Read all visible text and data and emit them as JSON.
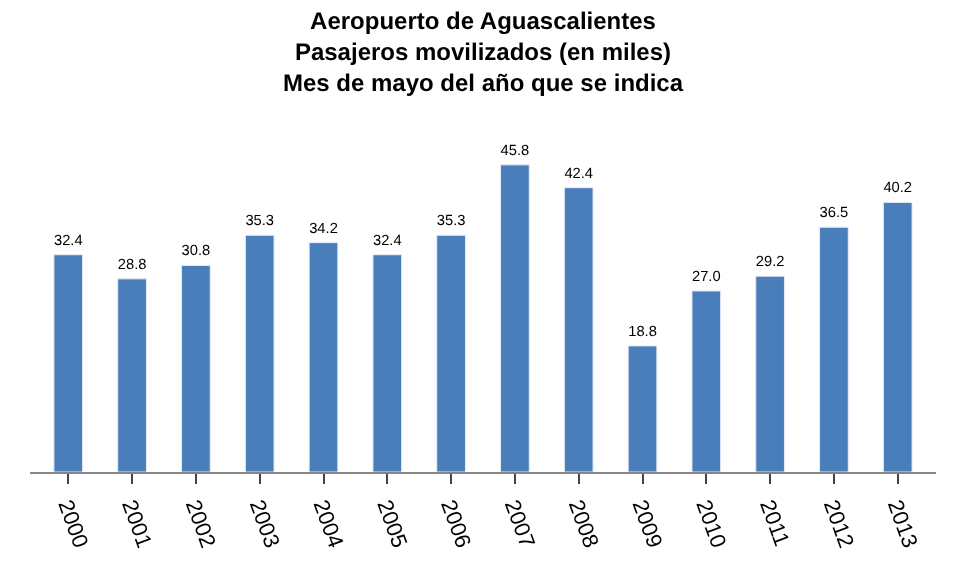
{
  "chart_data": {
    "type": "bar",
    "title": "Aeropuerto de Aguascalientes\nPasajeros movilizados (en miles)\nMes de mayo del año que se indica",
    "categories": [
      "2000",
      "2001",
      "2002",
      "2003",
      "2004",
      "2005",
      "2006",
      "2007",
      "2008",
      "2009",
      "2010",
      "2011",
      "2012",
      "2013"
    ],
    "values": [
      32.4,
      28.8,
      30.8,
      35.3,
      34.2,
      32.4,
      35.3,
      45.8,
      42.4,
      18.8,
      27.0,
      29.2,
      36.5,
      40.2
    ],
    "value_labels": [
      "32.4",
      "28.8",
      "30.8",
      "35.3",
      "34.2",
      "32.4",
      "35.3",
      "45.8",
      "42.4",
      "18.8",
      "27.0",
      "29.2",
      "36.5",
      "40.2"
    ],
    "color": "#4a7ebb",
    "legend": false
  }
}
